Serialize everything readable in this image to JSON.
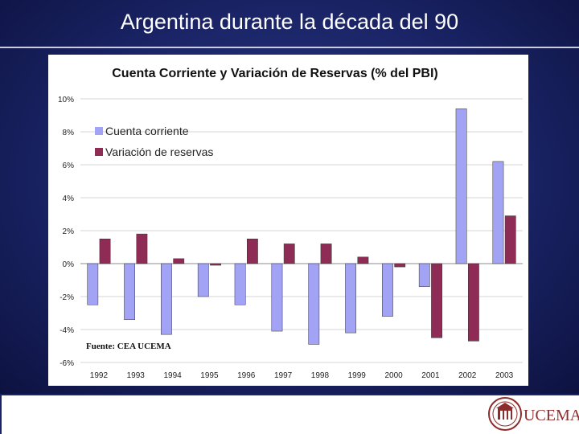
{
  "slide": {
    "title": "Argentina durante la década del 90"
  },
  "logo": {
    "text": "UCEMA"
  },
  "colors": {
    "background": "#1a2466",
    "series_current_account": "#a3a3f5",
    "series_reserves": "#8e2c55",
    "grid": "#888888"
  },
  "chart_data": {
    "type": "bar",
    "title": "Cuenta Corriente y Variación de Reservas (% del PBI)",
    "source_note": "Fuente: CEA UCEMA",
    "xlabel": "",
    "ylabel": "",
    "ylim": [
      -6,
      10
    ],
    "yticks": [
      -6,
      -4,
      -2,
      0,
      2,
      4,
      6,
      8,
      10
    ],
    "ytick_labels": [
      "-6%",
      "-4%",
      "-2%",
      "0%",
      "2%",
      "4%",
      "6%",
      "8%",
      "10%"
    ],
    "categories": [
      "1992",
      "1993",
      "1994",
      "1995",
      "1996",
      "1997",
      "1998",
      "1999",
      "2000",
      "2001",
      "2002",
      "2003"
    ],
    "legend_position": "top-left",
    "series": [
      {
        "name": "Cuenta corriente",
        "color": "#a3a3f5",
        "values": [
          -2.5,
          -3.4,
          -4.3,
          -2.0,
          -2.5,
          -4.1,
          -4.9,
          -4.2,
          -3.2,
          -1.4,
          9.4,
          6.2
        ]
      },
      {
        "name": "Variación de reservas",
        "color": "#8e2c55",
        "values": [
          1.5,
          1.8,
          0.3,
          -0.1,
          1.5,
          1.2,
          1.2,
          0.4,
          -0.2,
          -4.5,
          -4.7,
          2.9
        ]
      }
    ]
  }
}
